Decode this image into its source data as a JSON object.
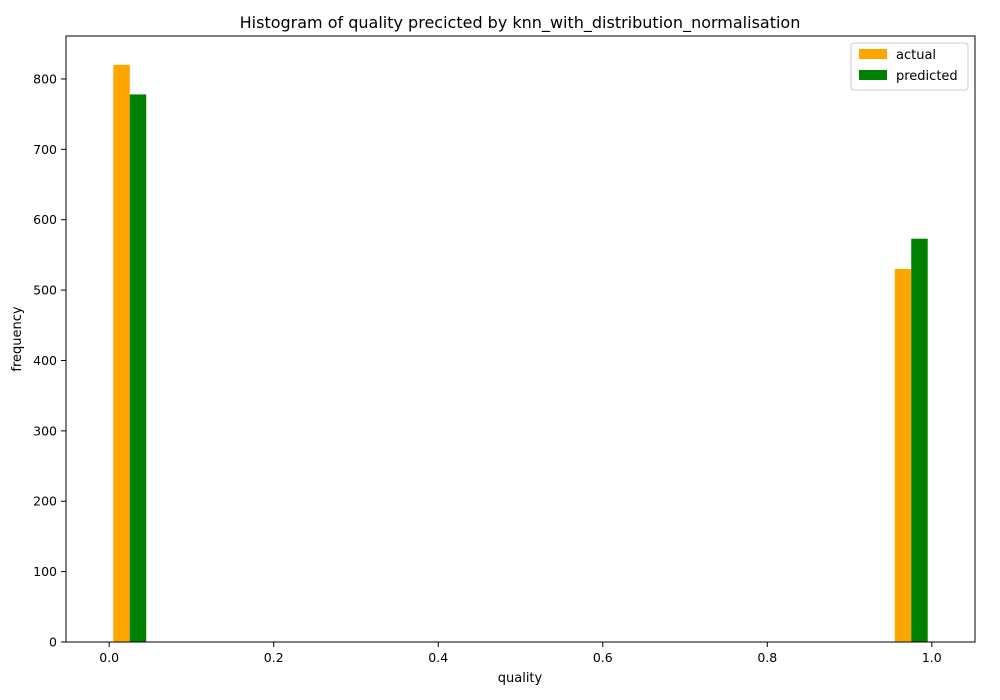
{
  "chart_data": {
    "type": "bar",
    "title": "Histogram of quality precicted by knn_with_distribution_normalisation",
    "xlabel": "quality",
    "ylabel": "frequency",
    "xlim": [
      -0.0525,
      1.0525
    ],
    "ylim": [
      0,
      861
    ],
    "x_ticks": [
      0.0,
      0.2,
      0.4,
      0.6,
      0.8,
      1.0
    ],
    "x_tick_labels": [
      "0.0",
      "0.2",
      "0.4",
      "0.6",
      "0.8",
      "1.0"
    ],
    "y_ticks": [
      0,
      100,
      200,
      300,
      400,
      500,
      600,
      700,
      800
    ],
    "y_tick_labels": [
      "0",
      "100",
      "200",
      "300",
      "400",
      "500",
      "600",
      "700",
      "800"
    ],
    "grid": false,
    "legend_position": "top-right",
    "bar_width": 0.02,
    "series": [
      {
        "name": "actual",
        "color": "#ffa500",
        "x_left": [
          0.005,
          0.955
        ],
        "values": [
          820,
          530
        ]
      },
      {
        "name": "predicted",
        "color": "#008000",
        "x_left": [
          0.025,
          0.975
        ],
        "values": [
          778,
          573
        ]
      }
    ]
  }
}
